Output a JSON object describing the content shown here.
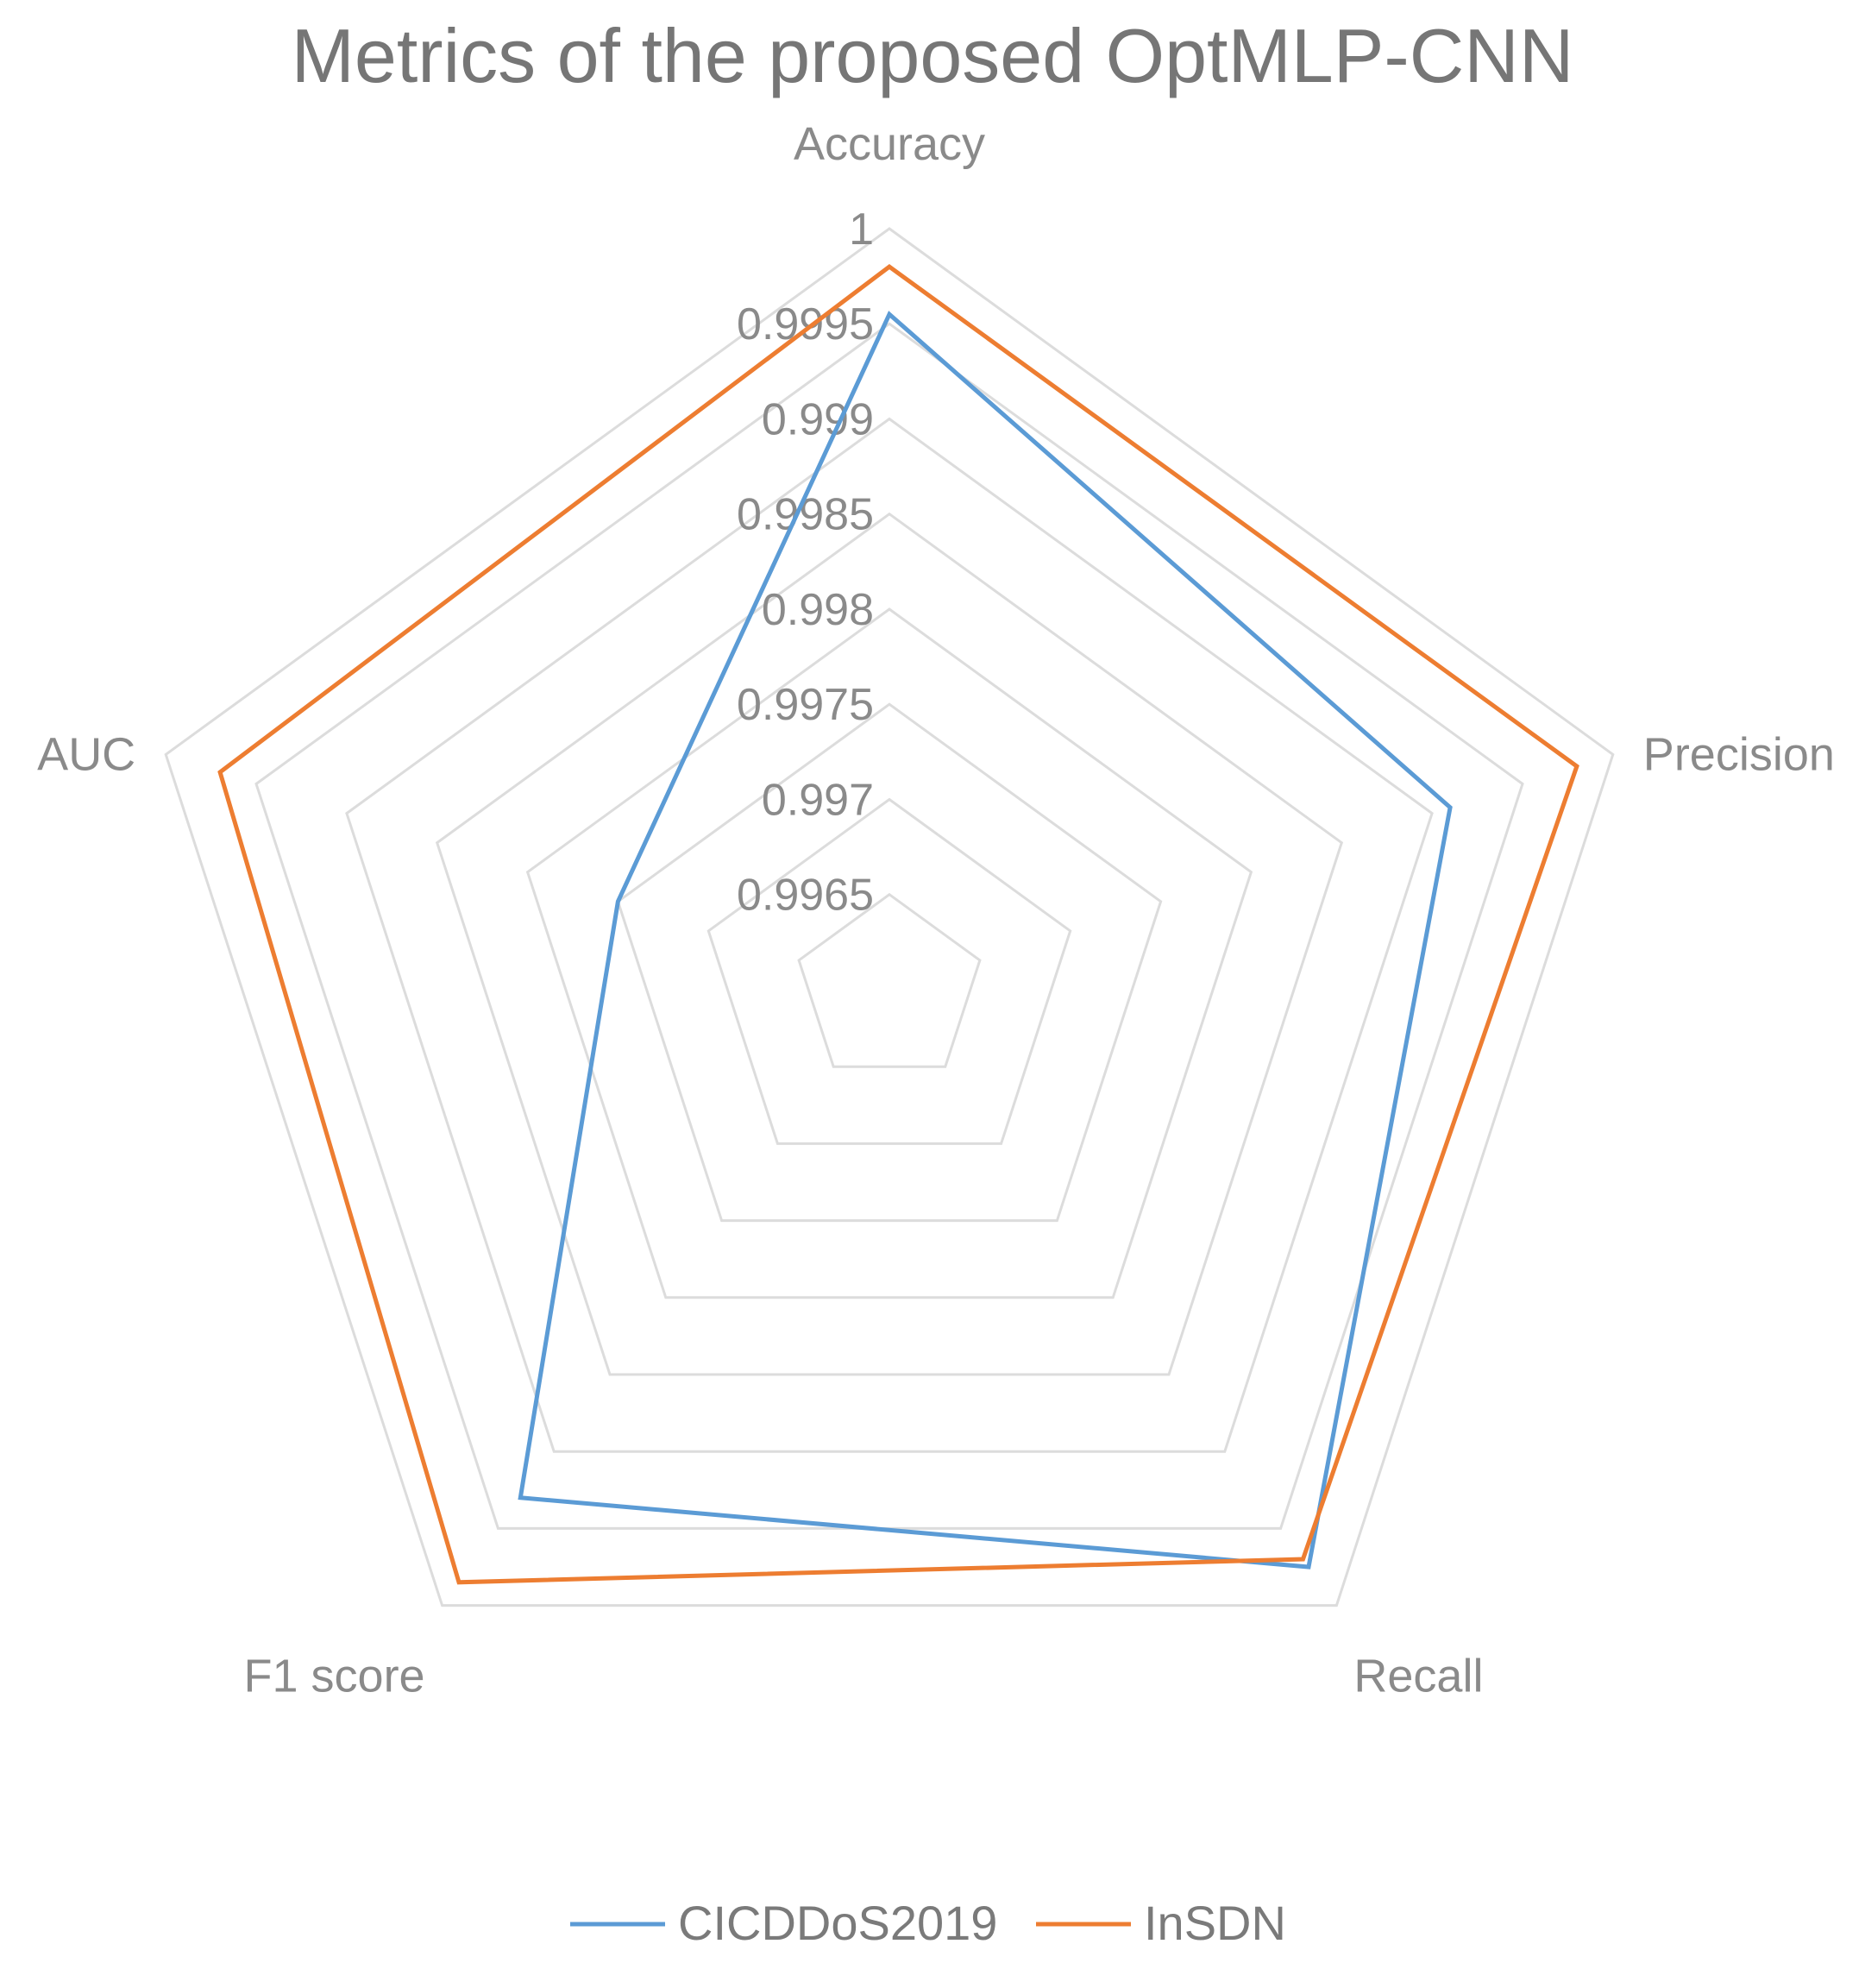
{
  "chart_data": {
    "type": "radar",
    "title": "Metrics of the proposed OptMLP-CNN",
    "categories": [
      "Accuracy",
      "Precision",
      "Recall",
      "F1 score",
      "AUC"
    ],
    "rlim": [
      0.996,
      1.0
    ],
    "ticks": [
      "1",
      "0.9995",
      "0.999",
      "0.9985",
      "0.998",
      "0.9975",
      "0.997",
      "0.9965"
    ],
    "tick_values": [
      1.0,
      0.9995,
      0.999,
      0.9985,
      0.998,
      0.9975,
      0.997,
      0.9965
    ],
    "ring_values": [
      0.9965,
      0.997,
      0.9975,
      0.998,
      0.9985,
      0.999,
      0.9995,
      1.0
    ],
    "grid": true,
    "legend_position": "bottom",
    "series": [
      {
        "name": "CICDDoS2019",
        "color": "#5B9BD5",
        "values": [
          0.99955,
          0.9991,
          0.99975,
          0.9993,
          0.9975
        ]
      },
      {
        "name": "InSDN",
        "color": "#ED7D31",
        "values": [
          0.9998,
          0.9998,
          0.9997,
          0.99985,
          0.9997
        ]
      }
    ]
  }
}
